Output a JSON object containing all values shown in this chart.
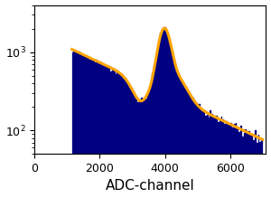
{
  "xlabel": "ADC-channel",
  "xlim": [
    0,
    7100
  ],
  "ylim_log": [
    50,
    4000
  ],
  "bar_color": "#000080",
  "line_color": "#FFA500",
  "hist_start": 1150,
  "hist_end": 7000,
  "n_bins": 120,
  "background_color": "#ffffff",
  "tick_fontsize": 9,
  "label_fontsize": 11,
  "line_width": 2.2,
  "xticks": [
    0,
    2000,
    4000,
    6000
  ]
}
